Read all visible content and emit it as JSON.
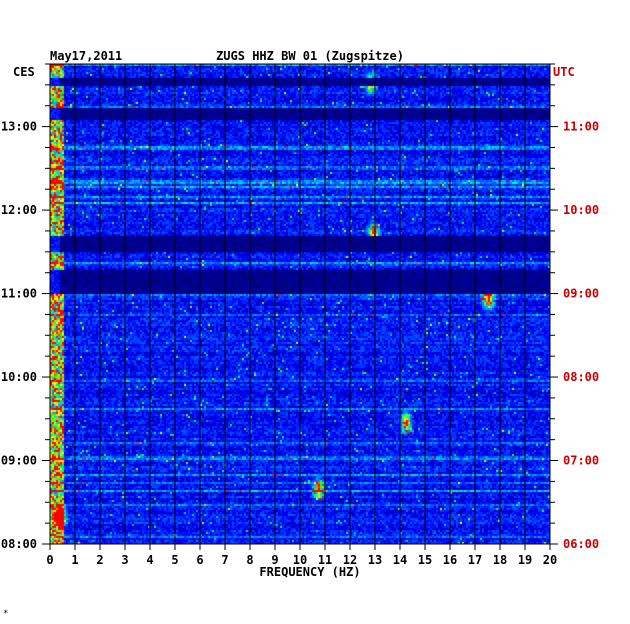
{
  "chart_data": {
    "type": "heatmap",
    "date": "May17,2011",
    "title": "ZUGS HHZ BW 01 (Zugspitze)",
    "left_axis_label": "CES",
    "right_axis_label": "UTC",
    "xlabel": "FREQUENCY (HZ)",
    "xlim": [
      0,
      20
    ],
    "x_ticks": [
      "0",
      "1",
      "2",
      "3",
      "4",
      "5",
      "6",
      "7",
      "8",
      "9",
      "10",
      "11",
      "12",
      "13",
      "14",
      "15",
      "16",
      "17",
      "18",
      "19",
      "20"
    ],
    "left_time_range": [
      "08:00",
      "13:45"
    ],
    "left_time_ticks": [
      "13:00",
      "12:00",
      "11:00",
      "10:00",
      "09:00",
      "08:00"
    ],
    "right_time_ticks": [
      "11:00",
      "10:00",
      "09:00",
      "08:00",
      "07:00",
      "06:00"
    ],
    "colors": {
      "low": "#00007f",
      "mid": "#0050ff",
      "high": "#00ffff",
      "peak": "#ffff00",
      "max": "#ff0000",
      "right_axis": "#cc0000"
    },
    "quiet_bands_ces": [
      [
        "13:06",
        "13:14"
      ],
      [
        "13:30",
        "13:36"
      ],
      [
        "11:00",
        "11:18"
      ],
      [
        "11:30",
        "11:42"
      ]
    ],
    "hot_spots": [
      {
        "freq_hz": 12.8,
        "time_ces": "13:32"
      },
      {
        "freq_hz": 12.9,
        "time_ces": "11:44"
      },
      {
        "freq_hz": 10.7,
        "time_ces": "08:40"
      },
      {
        "freq_hz": 17.5,
        "time_ces": "10:56"
      },
      {
        "freq_hz": 14.2,
        "time_ces": "09:28"
      },
      {
        "freq_hz": 0.4,
        "time_ces": "08:20"
      }
    ],
    "grid": true
  },
  "footnote": "*"
}
